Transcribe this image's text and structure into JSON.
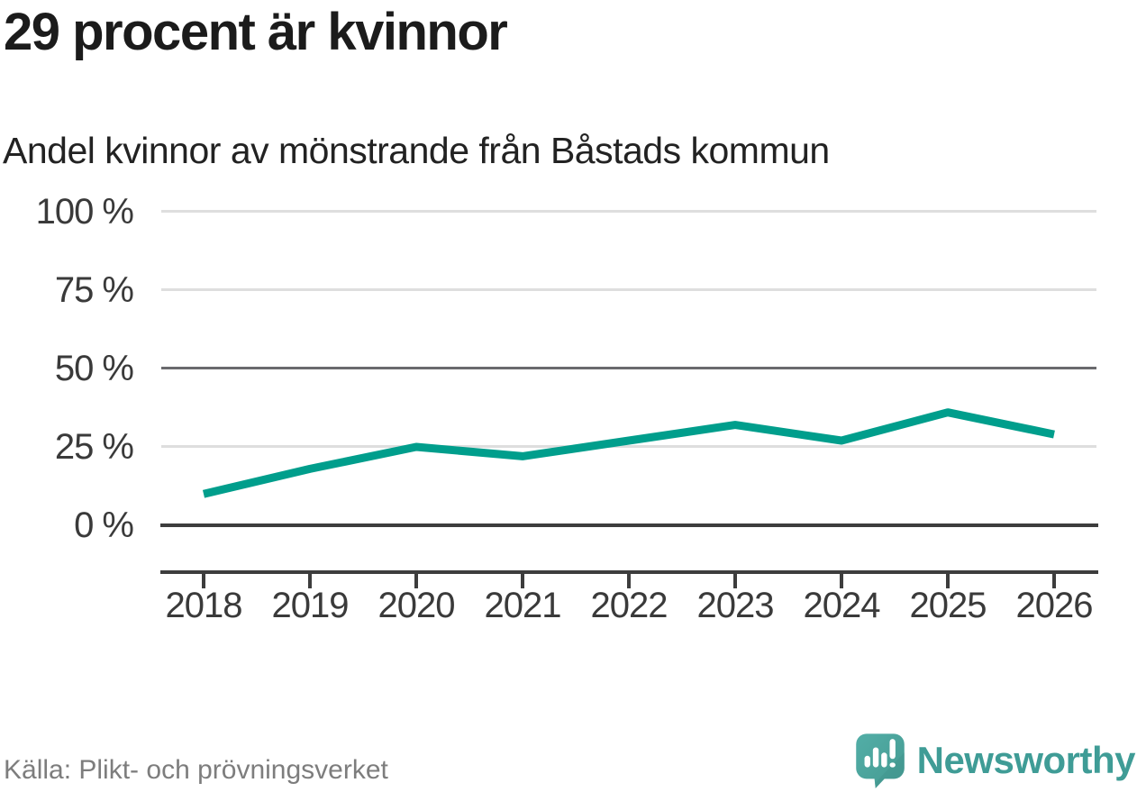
{
  "header": {
    "title": "29 procent är kvinnor",
    "subtitle": "Andel kvinnor av mönstrande från Båstads kommun"
  },
  "chart_data": {
    "type": "line",
    "title": "29 procent är kvinnor",
    "subtitle": "Andel kvinnor av mönstrande från Båstads kommun",
    "categories": [
      "2018",
      "2019",
      "2020",
      "2021",
      "2022",
      "2023",
      "2024",
      "2025",
      "2026"
    ],
    "values": [
      10,
      18,
      25,
      22,
      27,
      32,
      27,
      36,
      29
    ],
    "unit": "%",
    "ylim": [
      0,
      100
    ],
    "yticks": [
      "100 %",
      "75 %",
      "50 %",
      "25 %",
      "0 %"
    ],
    "ytick_values": [
      100,
      75,
      50,
      25,
      0
    ],
    "grid": "horizontal",
    "legend": "none",
    "line_color": "#009e8c",
    "emphasized_gridlines": [
      50,
      0
    ]
  },
  "footer": {
    "source": "Källa: Plikt- och prövningsverket",
    "brand": "Newsworthy"
  },
  "icons": {
    "logo": "newsworthy-speech-bubble-bar-chart-icon"
  },
  "colors": {
    "accent": "#009e8c",
    "brand_teal": "#4aa5a0",
    "text_dark": "#1b1b1b",
    "text_axis": "#3a3a3a",
    "text_muted": "#7d7d7d",
    "grid_light": "#dedede",
    "grid_mid": "#6a6a6e",
    "grid_dark": "#3d3d3d"
  }
}
